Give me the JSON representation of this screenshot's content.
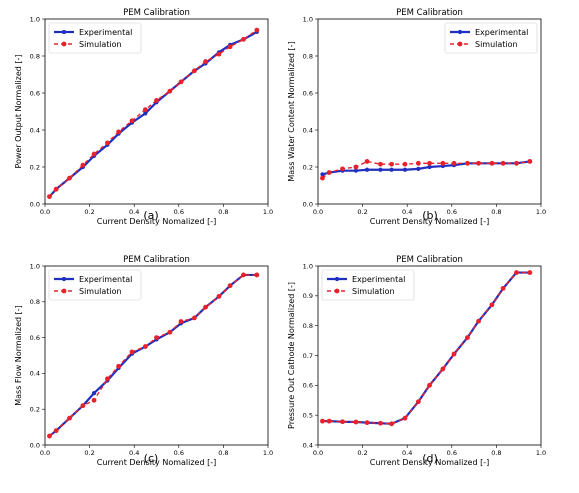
{
  "colors": {
    "experimental": "#1f2fbf",
    "simulation": "#e8212b"
  },
  "charts": [
    {
      "caption": "(a)",
      "chart_data": {
        "type": "line",
        "title": "PEM Calibration",
        "xlabel": "Current Density Nomalized [-]",
        "ylabel": "Power Output Normalized [-]",
        "xlim": [
          0.0,
          1.0
        ],
        "ylim": [
          0.0,
          1.0
        ],
        "xticks": [
          "0.0",
          "0.2",
          "0.4",
          "0.6",
          "0.8",
          "1.0"
        ],
        "yticks": [
          "0.0",
          "0.2",
          "0.4",
          "0.6",
          "0.8",
          "1.0"
        ],
        "legend": "top-left",
        "series": [
          {
            "name": "Experimental",
            "x": [
              0.02,
              0.05,
              0.11,
              0.17,
              0.22,
              0.28,
              0.33,
              0.39,
              0.45,
              0.5,
              0.56,
              0.61,
              0.67,
              0.72,
              0.78,
              0.83,
              0.89,
              0.95
            ],
            "y": [
              0.04,
              0.08,
              0.14,
              0.2,
              0.26,
              0.32,
              0.38,
              0.44,
              0.49,
              0.55,
              0.61,
              0.66,
              0.72,
              0.76,
              0.82,
              0.86,
              0.89,
              0.93
            ]
          },
          {
            "name": "Simulation",
            "x": [
              0.02,
              0.05,
              0.11,
              0.17,
              0.22,
              0.28,
              0.33,
              0.39,
              0.45,
              0.5,
              0.56,
              0.61,
              0.67,
              0.72,
              0.78,
              0.83,
              0.89,
              0.95
            ],
            "y": [
              0.04,
              0.08,
              0.14,
              0.21,
              0.27,
              0.33,
              0.39,
              0.45,
              0.51,
              0.56,
              0.61,
              0.66,
              0.72,
              0.77,
              0.81,
              0.85,
              0.89,
              0.94
            ]
          }
        ]
      }
    },
    {
      "caption": "(b)",
      "chart_data": {
        "type": "line",
        "title": "PEM Calibration",
        "xlabel": "Current Density Nomalized [-]",
        "ylabel": "Mass Water Content Normalized [-]",
        "xlim": [
          0.0,
          1.0
        ],
        "ylim": [
          0.0,
          1.0
        ],
        "xticks": [
          "0.0",
          "0.2",
          "0.4",
          "0.6",
          "0.8",
          "1.0"
        ],
        "yticks": [
          "0.0",
          "0.2",
          "0.4",
          "0.6",
          "0.8",
          "1.0"
        ],
        "legend": "top-right",
        "series": [
          {
            "name": "Experimental",
            "x": [
              0.02,
              0.05,
              0.11,
              0.17,
              0.22,
              0.28,
              0.33,
              0.39,
              0.45,
              0.5,
              0.56,
              0.61,
              0.67,
              0.72,
              0.78,
              0.83,
              0.89,
              0.95
            ],
            "y": [
              0.16,
              0.17,
              0.18,
              0.18,
              0.185,
              0.185,
              0.185,
              0.185,
              0.19,
              0.2,
              0.205,
              0.21,
              0.22,
              0.22,
              0.22,
              0.22,
              0.22,
              0.23
            ]
          },
          {
            "name": "Simulation",
            "x": [
              0.02,
              0.05,
              0.11,
              0.17,
              0.22,
              0.28,
              0.33,
              0.39,
              0.45,
              0.5,
              0.56,
              0.61,
              0.67,
              0.72,
              0.78,
              0.83,
              0.89,
              0.95
            ],
            "y": [
              0.14,
              0.17,
              0.19,
              0.2,
              0.23,
              0.215,
              0.215,
              0.215,
              0.22,
              0.22,
              0.22,
              0.22,
              0.22,
              0.22,
              0.22,
              0.22,
              0.22,
              0.23
            ]
          }
        ]
      }
    },
    {
      "caption": "(c)",
      "chart_data": {
        "type": "line",
        "title": "PEM Calibration",
        "xlabel": "Current Density Nomalized [-]",
        "ylabel": "Mass Flow Normalized [-]",
        "xlim": [
          0.0,
          1.0
        ],
        "ylim": [
          0.0,
          1.0
        ],
        "xticks": [
          "0.0",
          "0.2",
          "0.4",
          "0.6",
          "0.8",
          "1.0"
        ],
        "yticks": [
          "0.0",
          "0.2",
          "0.4",
          "0.6",
          "0.8",
          "1.0"
        ],
        "legend": "top-left",
        "series": [
          {
            "name": "Experimental",
            "x": [
              0.02,
              0.05,
              0.11,
              0.17,
              0.22,
              0.28,
              0.33,
              0.39,
              0.45,
              0.5,
              0.56,
              0.61,
              0.67,
              0.72,
              0.78,
              0.83,
              0.89,
              0.95
            ],
            "y": [
              0.05,
              0.08,
              0.15,
              0.22,
              0.29,
              0.36,
              0.43,
              0.51,
              0.55,
              0.59,
              0.63,
              0.68,
              0.71,
              0.77,
              0.83,
              0.89,
              0.95,
              0.95
            ]
          },
          {
            "name": "Simulation",
            "x": [
              0.02,
              0.05,
              0.11,
              0.17,
              0.22,
              0.28,
              0.33,
              0.39,
              0.45,
              0.5,
              0.56,
              0.61,
              0.67,
              0.72,
              0.78,
              0.83,
              0.89,
              0.95
            ],
            "y": [
              0.05,
              0.08,
              0.15,
              0.22,
              0.25,
              0.37,
              0.44,
              0.52,
              0.55,
              0.6,
              0.63,
              0.69,
              0.71,
              0.77,
              0.83,
              0.89,
              0.95,
              0.95
            ]
          }
        ]
      }
    },
    {
      "caption": "(d)",
      "chart_data": {
        "type": "line",
        "title": "PEM Calibration",
        "xlabel": "Current Density Nomalized [-]",
        "ylabel": "Pressure Out Cathode Normalized [-]",
        "xlim": [
          0.0,
          1.0
        ],
        "ylim": [
          0.4,
          1.0
        ],
        "xticks": [
          "0.0",
          "0.2",
          "0.4",
          "0.6",
          "0.8",
          "1.0"
        ],
        "yticks": [
          "0.4",
          "0.5",
          "0.6",
          "0.7",
          "0.8",
          "0.9",
          "1.0"
        ],
        "legend": "top-left",
        "series": [
          {
            "name": "Experimental",
            "x": [
              0.02,
              0.05,
              0.11,
              0.17,
              0.22,
              0.28,
              0.33,
              0.39,
              0.45,
              0.5,
              0.56,
              0.61,
              0.67,
              0.72,
              0.78,
              0.83,
              0.89,
              0.95
            ],
            "y": [
              0.48,
              0.48,
              0.478,
              0.477,
              0.475,
              0.473,
              0.471,
              0.49,
              0.545,
              0.6,
              0.655,
              0.705,
              0.76,
              0.815,
              0.87,
              0.925,
              0.978,
              0.978
            ]
          },
          {
            "name": "Simulation",
            "x": [
              0.02,
              0.05,
              0.11,
              0.17,
              0.22,
              0.28,
              0.33,
              0.39,
              0.45,
              0.5,
              0.56,
              0.61,
              0.67,
              0.72,
              0.78,
              0.83,
              0.89,
              0.95
            ],
            "y": [
              0.48,
              0.48,
              0.478,
              0.477,
              0.475,
              0.473,
              0.471,
              0.49,
              0.545,
              0.6,
              0.655,
              0.705,
              0.76,
              0.815,
              0.87,
              0.925,
              0.978,
              0.978
            ]
          }
        ]
      }
    }
  ]
}
